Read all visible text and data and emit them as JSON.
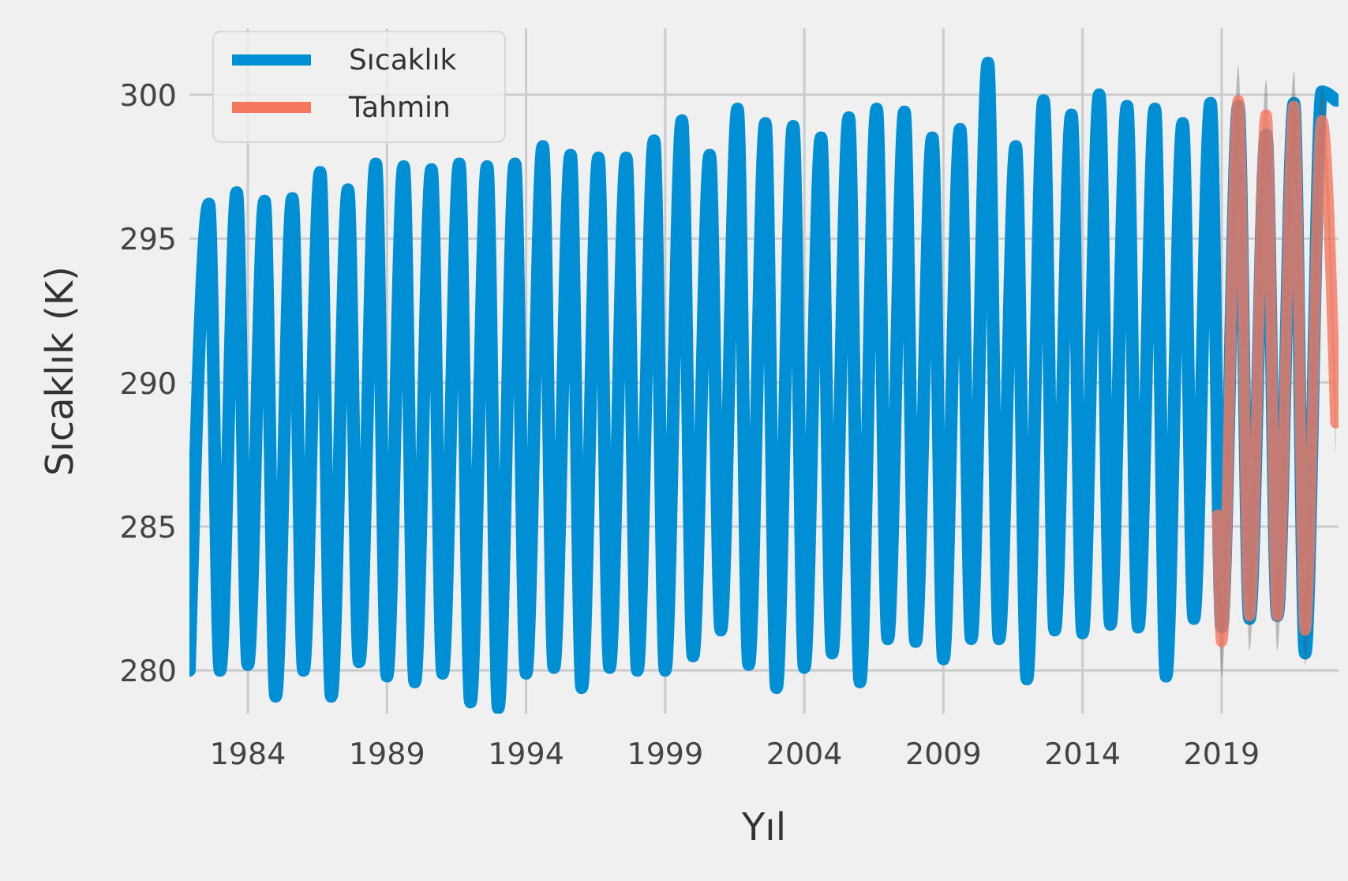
{
  "chart_data": {
    "type": "line",
    "xlabel": "Yıl",
    "ylabel": "Sıcaklık (K)",
    "xlim": [
      1981.9,
      2023.2
    ],
    "ylim": [
      278.5,
      302.3
    ],
    "xticks": [
      1984,
      1989,
      1994,
      1999,
      2004,
      2009,
      2014,
      2019
    ],
    "yticks": [
      280,
      285,
      290,
      295,
      300
    ],
    "grid": true,
    "legend": "top left",
    "line_style": "solid",
    "marker": "none",
    "series": [
      {
        "name": "Sıcaklık",
        "color": "#008fd5",
        "x": [
          1981.9,
          1982.6,
          1983.0,
          1983.6,
          1984.0,
          1984.6,
          1985.0,
          1985.6,
          1986.0,
          1986.6,
          1987.0,
          1987.6,
          1988.0,
          1988.6,
          1989.0,
          1989.6,
          1990.0,
          1990.6,
          1991.0,
          1991.6,
          1992.0,
          1992.6,
          1993.0,
          1993.6,
          1994.0,
          1994.6,
          1995.0,
          1995.6,
          1996.0,
          1996.6,
          1997.0,
          1997.6,
          1998.0,
          1998.6,
          1999.0,
          1999.6,
          2000.0,
          2000.6,
          2001.0,
          2001.6,
          2002.0,
          2002.6,
          2003.0,
          2003.6,
          2004.0,
          2004.6,
          2005.0,
          2005.6,
          2006.0,
          2006.6,
          2007.0,
          2007.6,
          2008.0,
          2008.6,
          2009.0,
          2009.6,
          2010.0,
          2010.6,
          2011.0,
          2011.6,
          2012.0,
          2012.6,
          2013.0,
          2013.6,
          2014.0,
          2014.6,
          2015.0,
          2015.6,
          2016.0,
          2016.6,
          2017.0,
          2017.6,
          2018.0,
          2018.6,
          2019.0,
          2019.6,
          2020.0,
          2020.6,
          2021.0,
          2021.6,
          2022.0,
          2022.6,
          2023.1
        ],
        "values": [
          280.0,
          296.2,
          280.0,
          296.6,
          280.2,
          296.3,
          279.1,
          296.4,
          280.0,
          297.3,
          279.1,
          296.7,
          280.3,
          297.6,
          279.8,
          297.5,
          279.6,
          297.4,
          279.9,
          297.6,
          278.9,
          297.5,
          278.7,
          297.6,
          279.9,
          298.2,
          280.1,
          297.9,
          279.4,
          297.8,
          280.1,
          297.8,
          280.0,
          298.4,
          280.0,
          299.1,
          280.5,
          297.9,
          281.4,
          299.5,
          280.2,
          299.0,
          279.4,
          298.9,
          280.1,
          298.5,
          280.6,
          299.2,
          279.6,
          299.5,
          281.1,
          299.4,
          281.0,
          298.5,
          280.4,
          298.8,
          281.1,
          301.1,
          281.1,
          298.2,
          279.7,
          299.8,
          281.4,
          299.3,
          281.3,
          300.0,
          281.6,
          299.6,
          281.5,
          299.5,
          279.8,
          299.0,
          281.8,
          299.7,
          281.5,
          299.6,
          281.8,
          298.6,
          281.9,
          299.7,
          280.6,
          300.1,
          299.8
        ]
      },
      {
        "name": "Tahmin",
        "color": "#f4775e",
        "x": [
          2018.85,
          2019.0,
          2019.6,
          2020.0,
          2020.6,
          2021.0,
          2021.6,
          2022.0,
          2022.6,
          2023.1
        ],
        "values": [
          285.4,
          281.0,
          299.8,
          281.9,
          299.3,
          281.9,
          299.6,
          281.4,
          299.1,
          288.6
        ],
        "lower": [
          284.2,
          279.8,
          298.6,
          280.7,
          298.1,
          280.7,
          298.4,
          280.2,
          297.9,
          287.4
        ],
        "upper": [
          286.6,
          282.2,
          301.0,
          283.1,
          300.5,
          283.1,
          300.8,
          282.6,
          300.3,
          289.8
        ]
      }
    ]
  }
}
